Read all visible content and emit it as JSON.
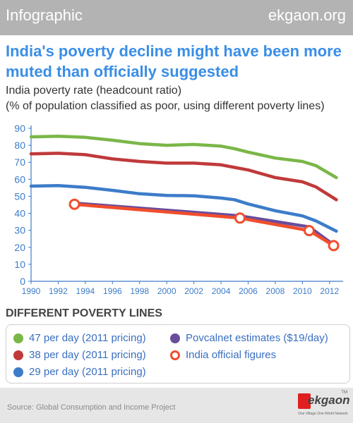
{
  "header": {
    "label": "Infographic",
    "site": "ekgaon.org"
  },
  "title": "India's poverty decline might have been more muted than officially suggested",
  "subtitle_line1": "India poverty rate (headcount ratio)",
  "subtitle_line2": "(% of population classified as poor, using different poverty lines)",
  "legend": {
    "title": "DIFFERENT POVERTY LINES",
    "items": [
      {
        "label": "47 per day (2011 pricing)",
        "color": "#7ab648",
        "style": "filled"
      },
      {
        "label": "38 per day (2011 pricing)",
        "color": "#c0393b",
        "style": "filled"
      },
      {
        "label": "29 per day (2011 pricing)",
        "color": "#3d7cc9",
        "style": "filled"
      },
      {
        "label": "Povcalnet estimates ($19/day)",
        "color": "#6a4c9c",
        "style": "filled"
      },
      {
        "label": "India official figures",
        "color": "#f04e2c",
        "style": "ring"
      }
    ]
  },
  "footer": {
    "source": "Source: Global Consumption and Income Project"
  },
  "logo": {
    "text": "ekgaon",
    "tagline": "One Village One World Network",
    "tm": "TM"
  },
  "chart_data": {
    "type": "line",
    "xlim": [
      1990,
      2013
    ],
    "ylim": [
      0,
      90
    ],
    "xticks": [
      1990,
      1992,
      1994,
      1996,
      1998,
      2000,
      2002,
      2004,
      2006,
      2008,
      2010,
      2012
    ],
    "yticks": [
      0,
      10,
      20,
      30,
      40,
      50,
      60,
      70,
      80,
      90
    ],
    "grid": false,
    "series": [
      {
        "name": "47 per day (2011 pricing)",
        "color": "#7ab648",
        "x": [
          1990,
          1992,
          1994,
          1996,
          1998,
          2000,
          2002,
          2004,
          2005,
          2006,
          2008,
          2010,
          2011,
          2012.5
        ],
        "y": [
          85,
          85.3,
          84.7,
          83,
          81,
          80,
          80.5,
          79.5,
          78,
          76,
          72.5,
          70.5,
          68,
          61
        ]
      },
      {
        "name": "38 per day (2011 pricing)",
        "color": "#c0393b",
        "x": [
          1990,
          1992,
          1994,
          1996,
          1998,
          2000,
          2002,
          2004,
          2005,
          2006,
          2008,
          2010,
          2011,
          2012.5
        ],
        "y": [
          75,
          75.3,
          74.5,
          72,
          70.5,
          69.5,
          69.5,
          68.5,
          67,
          65.5,
          61,
          58.5,
          55.5,
          48
        ]
      },
      {
        "name": "29 per day (2011 pricing)",
        "color": "#3d7cc9",
        "x": [
          1990,
          1992,
          1994,
          1996,
          1998,
          2000,
          2002,
          2004,
          2005,
          2006,
          2008,
          2010,
          2011,
          2012.5
        ],
        "y": [
          56,
          56.3,
          55.3,
          53.5,
          51.5,
          50.5,
          50.3,
          49,
          48,
          45.5,
          41.5,
          38.5,
          35.5,
          29.5
        ]
      },
      {
        "name": "Povcalnet estimates ($19/day)",
        "color": "#6a4c9c",
        "x": [
          1993.2,
          2005.4,
          2010.5,
          2012.3
        ],
        "y": [
          46,
          38.5,
          32,
          21.5
        ]
      },
      {
        "name": "India official figures",
        "color": "#f04e2c",
        "x": [
          1993.2,
          2005.4,
          2010.5,
          2012.3
        ],
        "y": [
          45.3,
          37.2,
          29.8,
          21
        ],
        "markers": true
      }
    ]
  }
}
